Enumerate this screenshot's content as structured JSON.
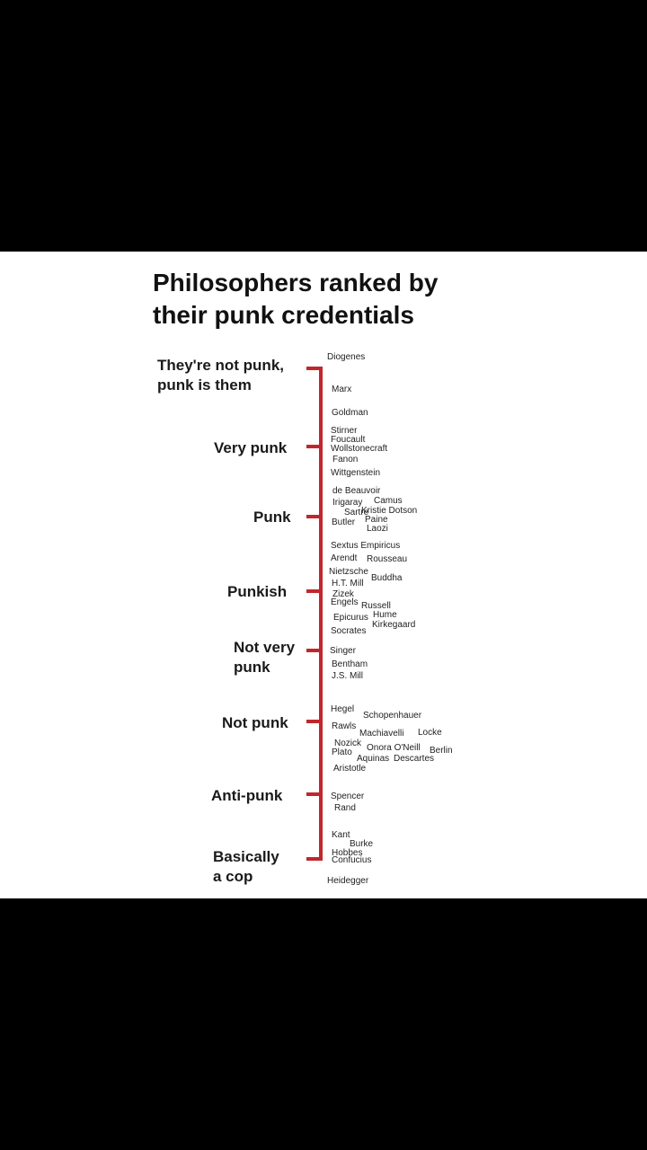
{
  "title": [
    "Philosophers ranked by",
    "their punk credentials"
  ],
  "levels": [
    {
      "label": [
        "They're not punk,",
        "punk is them"
      ]
    },
    {
      "label": [
        "Very punk"
      ]
    },
    {
      "label": [
        "Punk"
      ]
    },
    {
      "label": [
        "Punkish"
      ]
    },
    {
      "label": [
        "Not very",
        "punk"
      ]
    },
    {
      "label": [
        "Not punk"
      ]
    },
    {
      "label": [
        "Anti-punk"
      ]
    },
    {
      "label": [
        "Basically",
        "a cop"
      ]
    }
  ],
  "names": [
    "Diogenes",
    "Marx",
    "Goldman",
    "Stirner",
    "Foucault",
    "Wollstonecraft",
    "Fanon",
    "Wittgenstein",
    "de Beauvoir",
    "Irigaray",
    "Camus",
    "Sartre",
    "Kristie Dotson",
    "Butler",
    "Paine",
    "Laozi",
    "Sextus Empiricus",
    "Arendt",
    "Rousseau",
    "Nietzsche",
    "Buddha",
    "H.T. Mill",
    "Zizek",
    "Engels",
    "Russell",
    "Hume",
    "Epicurus",
    "Kirkegaard",
    "Socrates",
    "Singer",
    "Bentham",
    "J.S. Mill",
    "Hegel",
    "Schopenhauer",
    "Rawls",
    "Machiavelli",
    "Locke",
    "Nozick",
    "Onora O'Neill",
    "Plato",
    "Berlin",
    "Aquinas",
    "Descartes",
    "Aristotle",
    "Spencer",
    "Rand",
    "Kant",
    "Burke",
    "Hobbes",
    "Confucius",
    "Heidegger"
  ]
}
